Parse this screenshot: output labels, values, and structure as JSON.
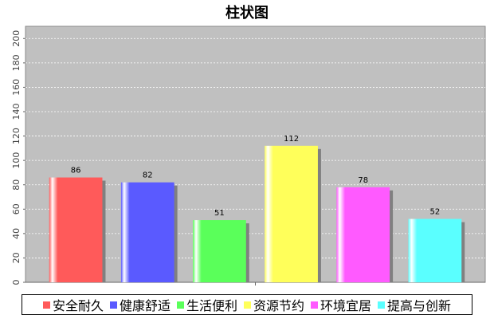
{
  "chart_data": {
    "type": "bar",
    "title": "柱状图",
    "categories": [
      "安全耐久",
      "健康舒适",
      "生活便利",
      "资源节约",
      "环境宜居",
      "提高与创新"
    ],
    "values": [
      86,
      82,
      51,
      112,
      78,
      52
    ],
    "colors": [
      "#ff5a5a",
      "#5a5aff",
      "#5aff5a",
      "#ffff5a",
      "#ff5aff",
      "#5affff"
    ],
    "ylim": [
      0,
      210
    ],
    "yticks": [
      0,
      20,
      40,
      60,
      80,
      100,
      120,
      140,
      160,
      180,
      200
    ],
    "xlabel": "",
    "ylabel": "",
    "grid": true,
    "legend_position": "bottom",
    "plot_background": "#c0c0c0"
  }
}
